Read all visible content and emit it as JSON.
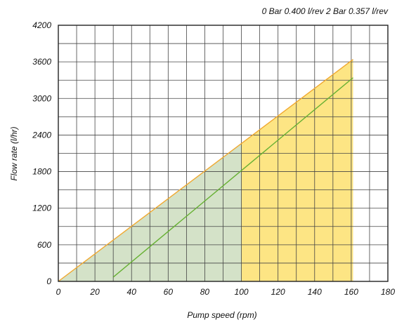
{
  "chart_data": {
    "type": "area",
    "title": "",
    "legend_text": "0 Bar 0.400 l/rev   2 Bar 0.357 l/rev",
    "xlabel": "Pump speed (rpm)",
    "ylabel": "Flow rate (l/hr)",
    "xlim": [
      0,
      180
    ],
    "ylim": [
      0,
      4200
    ],
    "x_ticks": [
      0,
      20,
      40,
      60,
      80,
      100,
      120,
      140,
      160,
      180
    ],
    "y_ticks": [
      0,
      600,
      1200,
      1800,
      2400,
      3000,
      3600,
      4200
    ],
    "grid": true,
    "x_minor_step": 10,
    "y_minor_step": 300,
    "series": [
      {
        "name": "0 Bar 0.400 l/rev",
        "kind": "area-line",
        "color": "#f0a830",
        "x": [
          0,
          161
        ],
        "y": [
          0,
          3640
        ]
      },
      {
        "name": "2 Bar 0.357 l/rev",
        "kind": "line",
        "color": "#66b032",
        "x": [
          30,
          161
        ],
        "y": [
          70,
          3340
        ]
      }
    ],
    "regions": [
      {
        "x_range": [
          0,
          100
        ],
        "color": "#d4e2c8"
      },
      {
        "x_range": [
          100,
          161
        ],
        "color": "#fde584"
      }
    ]
  }
}
